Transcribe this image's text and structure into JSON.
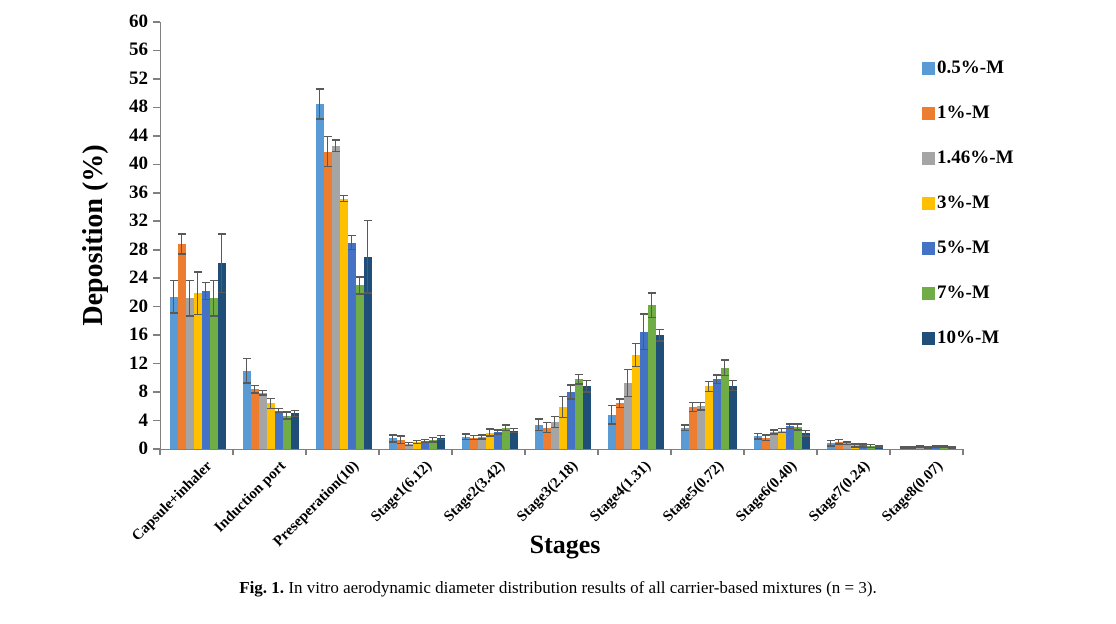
{
  "figure": {
    "caption_label": "Fig. 1.",
    "caption_text": "In vitro aerodynamic diameter distribution results of all carrier-based mixtures (n = 3)."
  },
  "chart_data": {
    "type": "bar",
    "title": "",
    "xlabel": "Stages",
    "ylabel": "Deposition (%)",
    "ylim": [
      0,
      60
    ],
    "ytick_step": 4,
    "grid": false,
    "legend_position": "right",
    "error_bars": true,
    "error_bar_color": "#595959",
    "axis_color": "#808080",
    "categories": [
      "Capsule+inhaler",
      "Induction port",
      "Preseperation(10)",
      "Stage1(6.12)",
      "Stage2(3.42)",
      "Stage3(2.18)",
      "Stage4(1.31)",
      "Stage5(0.72)",
      "Stage6(0.40)",
      "Stage7(0.24)",
      "Stage8(0.07)"
    ],
    "series": [
      {
        "name": "0.5%-M",
        "color": "#5B9BD5",
        "values": [
          21.4,
          11.0,
          48.5,
          1.5,
          1.7,
          3.4,
          4.8,
          3.0,
          1.8,
          0.8,
          0.2
        ],
        "errors": [
          2.3,
          1.7,
          2.1,
          0.5,
          0.4,
          0.8,
          1.3,
          0.4,
          0.4,
          0.4,
          0.1
        ]
      },
      {
        "name": "1%-M",
        "color": "#ED7D31",
        "values": [
          28.8,
          8.4,
          41.8,
          1.3,
          1.6,
          3.0,
          6.4,
          5.9,
          1.6,
          1.0,
          0.2
        ],
        "errors": [
          1.4,
          0.5,
          2.1,
          0.5,
          0.3,
          0.7,
          0.6,
          0.6,
          0.4,
          0.3,
          0.1
        ]
      },
      {
        "name": "1.46%-M",
        "color": "#A5A5A5",
        "values": [
          21.2,
          7.9,
          42.6,
          0.7,
          1.7,
          3.8,
          9.3,
          6.0,
          2.4,
          0.8,
          0.3
        ],
        "errors": [
          2.5,
          0.3,
          0.8,
          0.2,
          0.3,
          0.8,
          1.9,
          0.5,
          0.3,
          0.2,
          0.1
        ]
      },
      {
        "name": "3%-M",
        "color": "#FFC000",
        "values": [
          21.9,
          6.4,
          35.2,
          1.0,
          2.3,
          5.9,
          13.2,
          8.8,
          2.6,
          0.5,
          0.2
        ],
        "errors": [
          3.0,
          0.7,
          0.4,
          0.2,
          0.5,
          1.5,
          1.6,
          0.7,
          0.3,
          0.2,
          0.1
        ]
      },
      {
        "name": "5%-M",
        "color": "#4472C4",
        "values": [
          22.2,
          5.4,
          29.0,
          1.1,
          2.4,
          8.0,
          16.5,
          9.8,
          3.2,
          0.5,
          0.3
        ],
        "errors": [
          1.2,
          0.3,
          1.0,
          0.2,
          0.3,
          1.0,
          2.5,
          0.6,
          0.3,
          0.2,
          0.1
        ]
      },
      {
        "name": "7%-M",
        "color": "#70AD47",
        "values": [
          21.2,
          4.7,
          23.0,
          1.3,
          3.0,
          9.8,
          20.2,
          11.4,
          3.1,
          0.4,
          0.3
        ],
        "errors": [
          2.5,
          0.5,
          1.2,
          0.3,
          0.4,
          0.7,
          1.7,
          1.1,
          0.4,
          0.2,
          0.1
        ]
      },
      {
        "name": "10%-M",
        "color": "#1F4E79",
        "values": [
          26.1,
          5.0,
          27.0,
          1.6,
          2.6,
          8.8,
          16.0,
          8.9,
          2.2,
          0.3,
          0.2
        ],
        "errors": [
          4.1,
          0.4,
          5.1,
          0.3,
          0.3,
          0.8,
          0.8,
          0.7,
          0.4,
          0.1,
          0.1
        ]
      }
    ]
  }
}
